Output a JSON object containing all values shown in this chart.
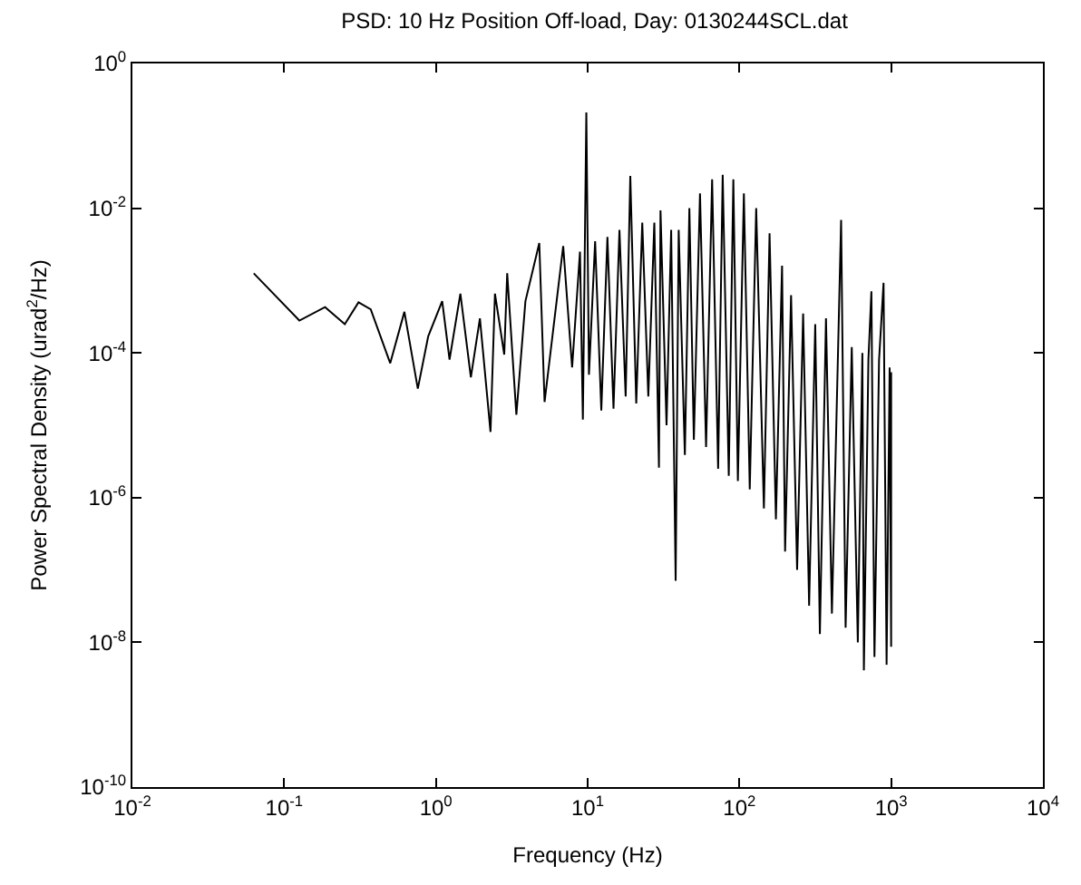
{
  "chart_data": {
    "type": "line",
    "title": "PSD: 10 Hz Position Off-load, Day: 0130244SCL.dat",
    "xlabel": "Frequency (Hz)",
    "ylabel": "Power Spectral Density (urad$^{2}$/Hz)",
    "log": "xy",
    "xlim": [
      0.01,
      10000
    ],
    "ylim": [
      1e-10,
      1
    ],
    "xticks": [
      {
        "value": 0.01,
        "label": "10$^{-2}$"
      },
      {
        "value": 0.1,
        "label": "10$^{-1}$"
      },
      {
        "value": 1,
        "label": "10$^{0}$"
      },
      {
        "value": 10,
        "label": "10$^{1}$"
      },
      {
        "value": 100,
        "label": "10$^{2}$"
      },
      {
        "value": 1000,
        "label": "10$^{3}$"
      },
      {
        "value": 10000,
        "label": "10$^{4}$"
      }
    ],
    "yticks": [
      {
        "value": 1e-10,
        "label": "10$^{-10}$"
      },
      {
        "value": 1e-08,
        "label": "10$^{-8}$"
      },
      {
        "value": 1e-06,
        "label": "10$^{-6}$"
      },
      {
        "value": 0.0001,
        "label": "10$^{-4}$"
      },
      {
        "value": 0.01,
        "label": "10$^{-2}$"
      },
      {
        "value": 1,
        "label": "10$^{0}$"
      }
    ],
    "x": [
      0.063,
      0.126,
      0.186,
      0.251,
      0.309,
      0.372,
      0.5,
      0.62,
      0.76,
      0.89,
      1.1,
      1.23,
      1.45,
      1.7,
      1.95,
      2.29,
      2.45,
      2.82,
      2.95,
      3.39,
      3.89,
      4.8,
      5.2,
      6.9,
      7.9,
      8.9,
      9.3,
      9.8,
      10.2,
      11.2,
      12.3,
      13.5,
      14.8,
      16.2,
      17.8,
      19.1,
      20.9,
      22.9,
      25.1,
      27.5,
      29.5,
      30.2,
      33.1,
      35.5,
      38.0,
      39.8,
      43.7,
      46.8,
      50.1,
      55.0,
      60.3,
      66.1,
      72.4,
      77.6,
      85.1,
      91.2,
      97.7,
      107,
      117,
      129,
      145,
      158,
      174,
      191,
      200,
      219,
      240,
      263,
      288,
      316,
      339,
      372,
      407,
      468,
      501,
      550,
      603,
      646,
      661,
      708,
      741,
      776,
      832,
      891,
      933,
      977,
      1000,
      1000
    ],
    "series": [
      {
        "color": "#000000",
        "values": [
          0.00126,
          0.00028,
          0.00043,
          0.00025,
          0.0005,
          0.0004,
          7.2e-05,
          0.00037,
          3.2e-05,
          0.00017,
          0.00052,
          8.1e-05,
          0.00066,
          4.6e-05,
          0.0003,
          8.1e-06,
          0.00066,
          9.5e-05,
          0.00126,
          1.4e-05,
          0.00052,
          0.0033,
          2.1e-05,
          0.003,
          6.3e-05,
          0.0025,
          1.2e-05,
          0.21,
          5e-05,
          0.0035,
          1.6e-05,
          0.004,
          1.7e-05,
          0.005,
          2.5e-05,
          0.028,
          2e-05,
          0.0063,
          2.5e-05,
          0.0063,
          2.6e-06,
          0.0093,
          1e-05,
          0.005,
          7.1e-08,
          0.005,
          3.9e-06,
          0.01,
          6.3e-06,
          0.016,
          5e-06,
          0.025,
          2.5e-06,
          0.029,
          2e-06,
          0.025,
          1.7e-06,
          0.016,
          1.3e-06,
          0.01,
          7.1e-07,
          0.0045,
          5e-07,
          0.0016,
          1.8e-07,
          0.00063,
          1e-07,
          0.00035,
          3.2e-08,
          0.00025,
          1.3e-08,
          0.0003,
          2.5e-08,
          0.0069,
          1.6e-08,
          0.00012,
          1e-08,
          0.0001,
          4.1e-09,
          8.1e-05,
          0.00071,
          6.3e-09,
          7.9e-05,
          0.00093,
          4.9e-09,
          6.3e-05,
          8.7e-09,
          5.4e-05
        ]
      }
    ]
  }
}
